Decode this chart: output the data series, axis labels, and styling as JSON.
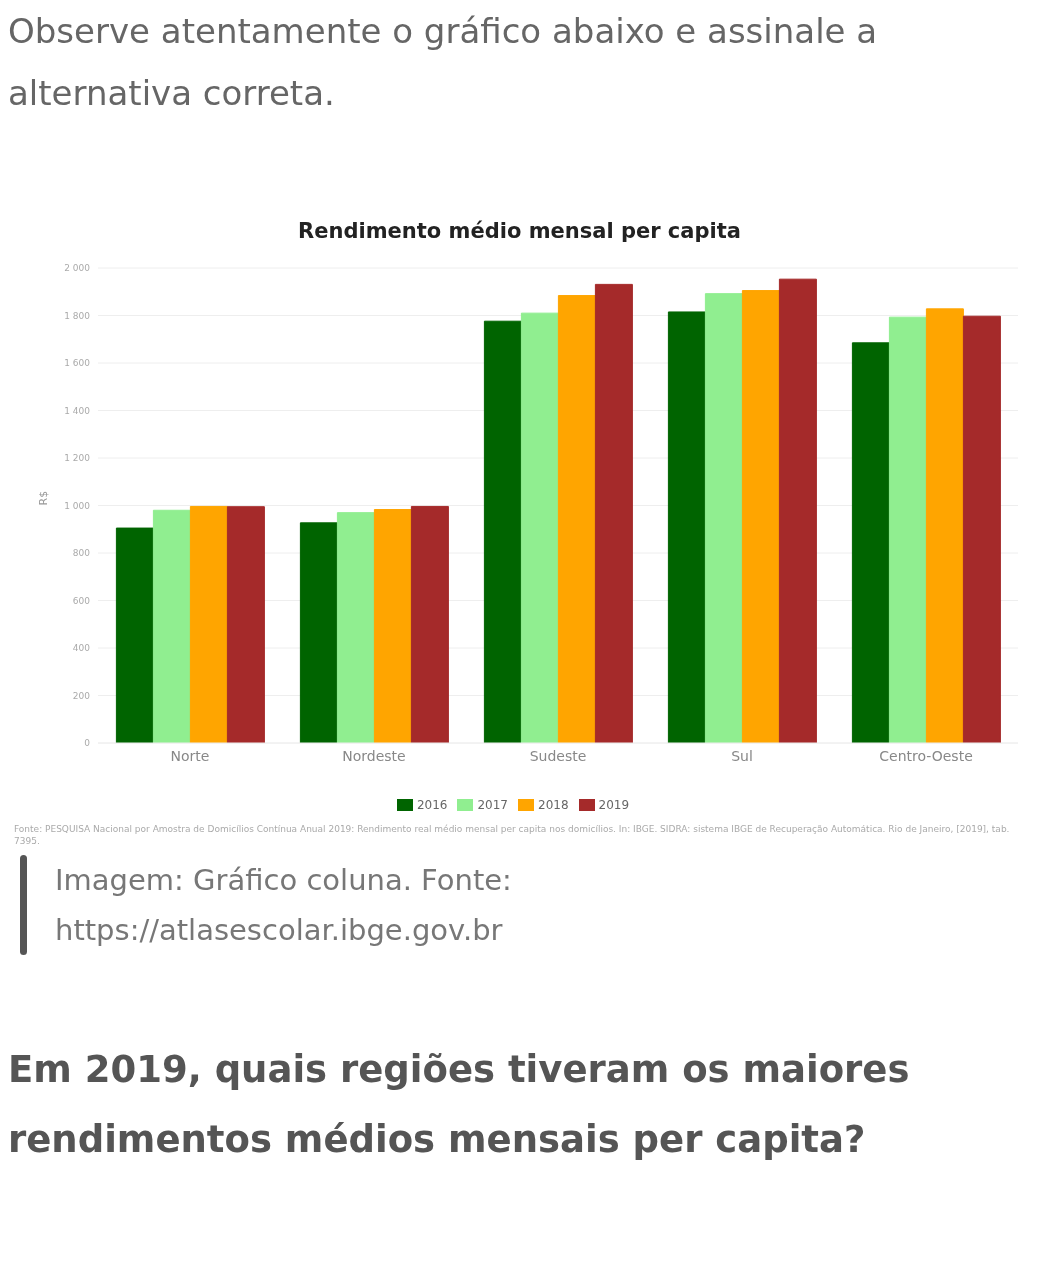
{
  "chart_data": {
    "type": "bar",
    "title": "Rendimento médio mensal per capita",
    "ylabel": "R$",
    "categories": [
      "Norte",
      "Nordeste",
      "Sudeste",
      "Sul",
      "Centro-Oeste"
    ],
    "series": [
      {
        "name": "2016",
        "color": "#006400",
        "values": [
          905,
          927,
          1776,
          1815,
          1685
        ]
      },
      {
        "name": "2017",
        "color": "#90ee90",
        "values": [
          980,
          970,
          1810,
          1892,
          1793
        ]
      },
      {
        "name": "2018",
        "color": "#ffa500",
        "values": [
          996,
          983,
          1884,
          1905,
          1828
        ]
      },
      {
        "name": "2019",
        "color": "#a52a2a",
        "values": [
          995,
          996,
          1931,
          1953,
          1797
        ]
      }
    ],
    "ylim": [
      0,
      2000
    ],
    "yticks": [
      0,
      200,
      400,
      600,
      800,
      {
        "value": 1000,
        "label": "1 000"
      },
      {
        "value": 1200,
        "label": "1 200"
      },
      {
        "value": 1400,
        "label": "1 400"
      },
      {
        "value": 1600,
        "label": "1 600"
      },
      {
        "value": 1800,
        "label": "1 800"
      },
      {
        "value": 2000,
        "label": "2 000"
      }
    ],
    "grid": "y",
    "legend": "bottom",
    "annotations": [
      "Observe atentamente o gráfico abaixo e assinale a alternativa correta.",
      "Fonte: PESQUISA Nacional por Amostra de Domicílios Contínua Anual 2019: Rendimento real médio mensal per capita nos domicílios. In: IBGE. SIDRA: sistema IBGE de Recuperação Automática. Rio de Janeiro, [2019], tab. 7395.",
      "Imagem: Gráfico coluna. Fonte: https://atlasescolar.ibge.gov.br",
      "Em 2019, quais regiões tiveram os maiores rendimentos médios mensais per capita?"
    ]
  }
}
